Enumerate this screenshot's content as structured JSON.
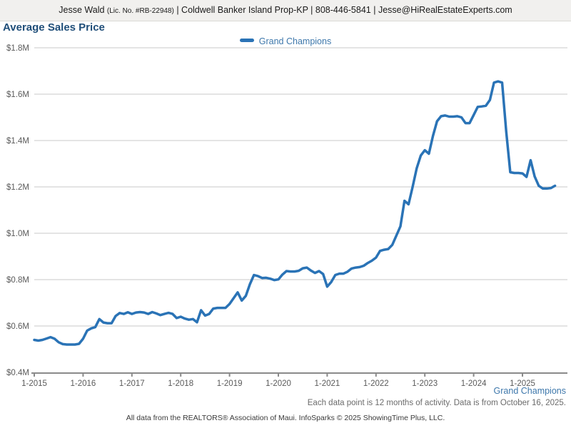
{
  "header": {
    "agent_name": "Jesse Wald ",
    "license": "(Lic. No. #RB-22948)",
    "sep_a": " | ",
    "brokerage": "Coldwell Banker Island Prop-KP",
    "sep_b": " | ",
    "phone": "808-446-5841",
    "sep_c": " | ",
    "email": "Jesse@HiRealEstateExperts.com"
  },
  "title": "Average Sales Price",
  "series_footer_label": "Grand Champions",
  "caption": "Each data point is 12 months of activity. Data is from October 16, 2025.",
  "attribution": "All data from the REALTORS® Association of Maui. InfoSparks © 2025 ShowingTime Plus, LLC.",
  "chart_data": {
    "type": "line",
    "title": "Average Sales Price",
    "xlabel": "",
    "ylabel": "",
    "grid": "horizontal",
    "legend_position": "top-center",
    "ylim_millions": [
      0.4,
      1.8
    ],
    "y_tick_labels": [
      "$0.4M",
      "$0.6M",
      "$0.8M",
      "$1.0M",
      "$1.2M",
      "$1.4M",
      "$1.6M",
      "$1.8M"
    ],
    "x_tick_labels": [
      "1-2015",
      "1-2016",
      "1-2017",
      "1-2018",
      "1-2019",
      "1-2020",
      "1-2021",
      "1-2022",
      "1-2023",
      "1-2024",
      "1-2025"
    ],
    "x_interval": "monthly",
    "x_first_point": "1-2015",
    "x_last_point": "9-2025",
    "series": [
      {
        "name": "Grand Champions",
        "color": "#2a73b6",
        "values_in_millions": [
          0.54,
          0.537,
          0.54,
          0.546,
          0.552,
          0.545,
          0.53,
          0.522,
          0.52,
          0.52,
          0.52,
          0.523,
          0.545,
          0.58,
          0.59,
          0.595,
          0.63,
          0.615,
          0.612,
          0.612,
          0.643,
          0.656,
          0.652,
          0.659,
          0.652,
          0.658,
          0.66,
          0.658,
          0.652,
          0.66,
          0.654,
          0.647,
          0.652,
          0.657,
          0.652,
          0.634,
          0.64,
          0.632,
          0.627,
          0.63,
          0.616,
          0.668,
          0.645,
          0.652,
          0.675,
          0.678,
          0.678,
          0.678,
          0.695,
          0.72,
          0.745,
          0.71,
          0.73,
          0.78,
          0.82,
          0.815,
          0.807,
          0.808,
          0.804,
          0.798,
          0.801,
          0.822,
          0.837,
          0.835,
          0.835,
          0.838,
          0.849,
          0.852,
          0.839,
          0.829,
          0.837,
          0.824,
          0.77,
          0.79,
          0.82,
          0.826,
          0.826,
          0.834,
          0.848,
          0.852,
          0.854,
          0.86,
          0.872,
          0.882,
          0.895,
          0.924,
          0.929,
          0.932,
          0.95,
          0.99,
          1.03,
          1.14,
          1.125,
          1.2,
          1.28,
          1.335,
          1.358,
          1.343,
          1.42,
          1.483,
          1.505,
          1.508,
          1.503,
          1.503,
          1.505,
          1.5,
          1.475,
          1.475,
          1.51,
          1.545,
          1.547,
          1.55,
          1.575,
          1.65,
          1.655,
          1.65,
          1.44,
          1.263,
          1.26,
          1.26,
          1.258,
          1.243,
          1.315,
          1.245,
          1.205,
          1.193,
          1.193,
          1.195,
          1.205
        ]
      }
    ]
  }
}
